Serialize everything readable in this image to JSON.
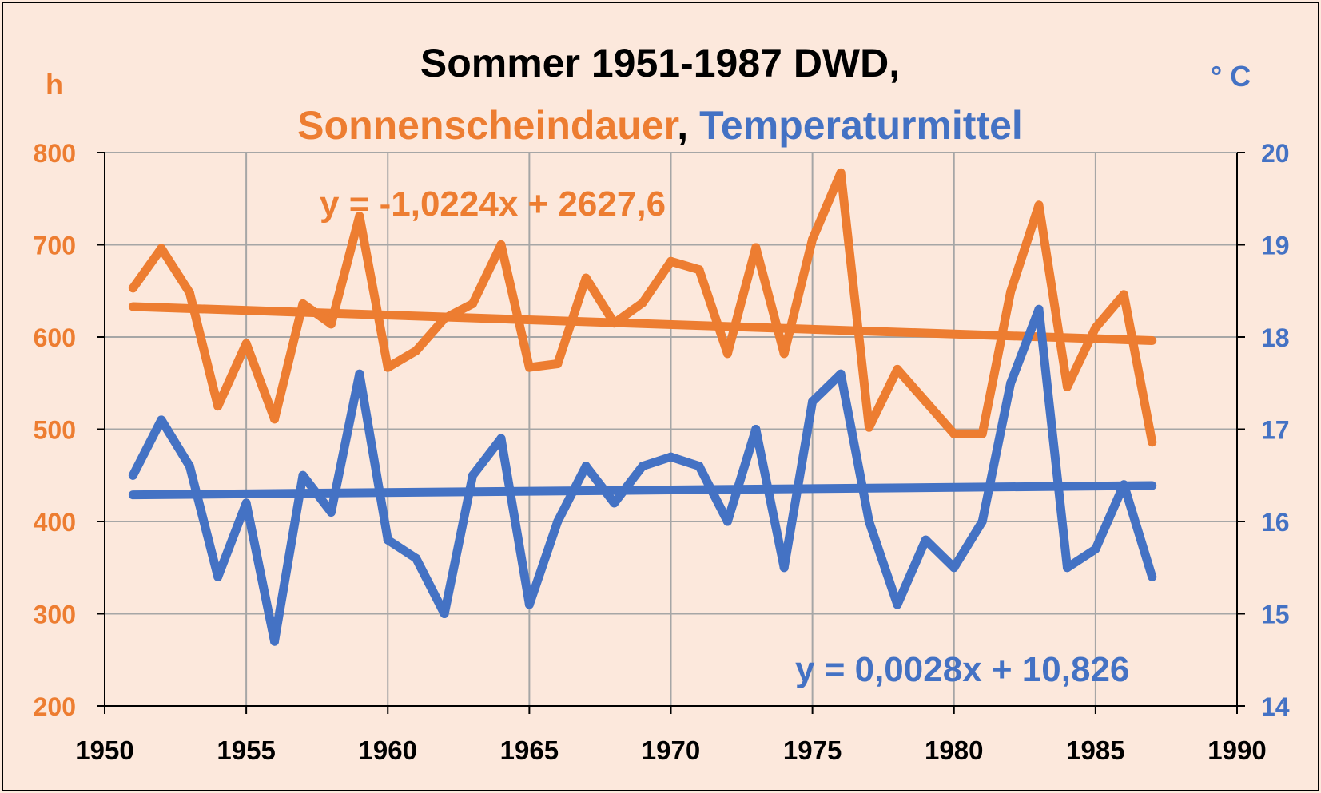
{
  "chart_data": {
    "type": "line",
    "title": "Sommer 1951-1987 DWD,",
    "subtitle_parts": [
      {
        "text": "Sonnenscheindauer",
        "color": "#ed7d31"
      },
      {
        "text": ", ",
        "color": "#000000"
      },
      {
        "text": "Temperaturmittel",
        "color": "#4472c4"
      }
    ],
    "y_left_label": "h",
    "y_right_label": "° C",
    "xlim": [
      1950,
      1990
    ],
    "x_ticks": [
      "1950",
      "1955",
      "1960",
      "1965",
      "1970",
      "1975",
      "1980",
      "1985",
      "1990"
    ],
    "ylim_left": [
      200,
      800
    ],
    "y_left_ticks": [
      "200",
      "300",
      "400",
      "500",
      "600",
      "700",
      "800"
    ],
    "ylim_right": [
      14,
      20
    ],
    "y_right_ticks": [
      "14",
      "15",
      "16",
      "17",
      "18",
      "19",
      "20"
    ],
    "grid": true,
    "x": [
      1951,
      1952,
      1953,
      1954,
      1955,
      1956,
      1957,
      1958,
      1959,
      1960,
      1961,
      1962,
      1963,
      1964,
      1965,
      1966,
      1967,
      1968,
      1969,
      1970,
      1971,
      1972,
      1973,
      1974,
      1975,
      1976,
      1977,
      1978,
      1979,
      1980,
      1981,
      1982,
      1983,
      1984,
      1985,
      1986,
      1987
    ],
    "series": [
      {
        "name": "Sonnenscheindauer",
        "axis": "left",
        "color": "#ed7d31",
        "values": [
          653,
          696,
          648,
          525,
          593,
          511,
          636,
          614,
          731,
          567,
          585,
          620,
          636,
          700,
          567,
          571,
          664,
          615,
          637,
          682,
          673,
          582,
          697,
          582,
          706,
          778,
          502,
          565,
          530,
          495,
          495,
          649,
          743,
          546,
          610,
          646,
          486
        ]
      },
      {
        "name": "Temperaturmittel",
        "axis": "right",
        "color": "#4472c4",
        "values": [
          16.5,
          17.1,
          16.6,
          15.4,
          16.2,
          14.7,
          16.5,
          16.1,
          17.6,
          15.8,
          15.6,
          15.0,
          16.5,
          16.9,
          15.1,
          16.0,
          16.6,
          16.2,
          16.6,
          16.7,
          16.6,
          16.0,
          17.0,
          15.5,
          17.3,
          17.6,
          16.0,
          15.1,
          15.8,
          15.5,
          16.0,
          17.5,
          18.3,
          15.5,
          15.7,
          16.4,
          15.4
        ]
      }
    ],
    "trendlines": [
      {
        "name": "Sonnenscheindauer-Trend",
        "axis": "left",
        "color": "#ed7d31",
        "slope": -1.0224,
        "intercept": 2627.6,
        "x_range": [
          1951,
          1987
        ],
        "label": "y = -1,0224x + 2627,6"
      },
      {
        "name": "Temperaturmittel-Trend",
        "axis": "right",
        "color": "#4472c4",
        "slope": 0.0028,
        "intercept": 10.826,
        "x_range": [
          1951,
          1987
        ],
        "label": "y = 0,0028x + 10,826"
      }
    ]
  }
}
